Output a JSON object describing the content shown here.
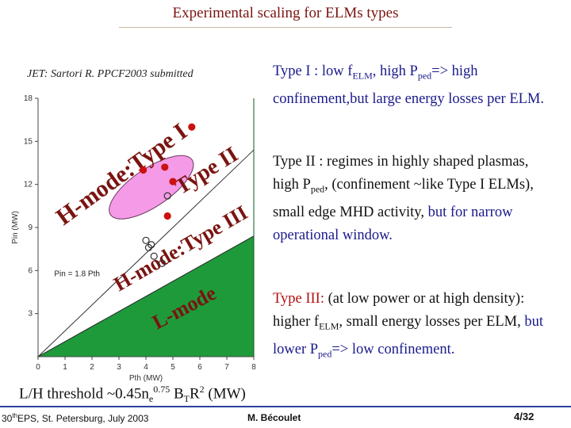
{
  "slide": {
    "title": "Experimental scaling for ELMs types",
    "reference": "JET: Sartori R. PPCF2003 submitted",
    "page": "4/32"
  },
  "type1": {
    "lead": "Type I : low f",
    "sub_elm": "ELM",
    "mid": ", high P",
    "sub_ped": "ped",
    "after": "=> high confinement,",
    "tail": "but large energy losses per ELM."
  },
  "type2": {
    "lead": "Type II : regimes in highly shaped plasmas,  high P",
    "sub_ped": "ped",
    "after": ", (confinement ~like Type I ELMs), small edge MHD activity,",
    "tail": "but for narrow operational window."
  },
  "type3": {
    "lead": "Type III:",
    "mid": "(at low power or at high density): higher f",
    "sub_elm": "ELM",
    "after": ", small energy losses per ELM,",
    "tail": "but lower P",
    "sub_ped": "ped",
    "end": "=> low confinement."
  },
  "threshold": {
    "lead": "L/H threshold ~0.45n",
    "sub_e": "e",
    "sup_exp": "0.75",
    "mid": "B",
    "sub_t": "T",
    "mid2": "R",
    "sup_two": "2",
    "end": "(MW)"
  },
  "footer": {
    "conference": "EPS, St. Petersburg, July 2003",
    "conf_number": "30",
    "conf_sup": "th",
    "author": "M. Bécoulet"
  },
  "chart_data": {
    "type": "scatter",
    "xlabel": "Pth (MW)",
    "ylabel": "Pin (MW)",
    "xlim": [
      0,
      8
    ],
    "ylim": [
      0,
      18
    ],
    "x_ticks": [
      "0",
      "1",
      "2",
      "3",
      "4",
      "5",
      "6",
      "7",
      "8"
    ],
    "y_ticks": [
      "3",
      "6",
      "9",
      "12",
      "15",
      "18"
    ],
    "threshold_line_label": "Pin = 1.8 Pth",
    "regions": [
      {
        "name": "H-mode:Type I"
      },
      {
        "name": "Type II"
      },
      {
        "name": "H-mode:Type III"
      },
      {
        "name": "L-mode"
      }
    ],
    "series": [
      {
        "name": "Type I",
        "marker": "filled-circle",
        "x": [
          5.7,
          4.7,
          3.9,
          5.0,
          4.8
        ],
        "y": [
          16.0,
          13.2,
          13.0,
          12.2,
          9.8
        ]
      },
      {
        "name": "Type III",
        "marker": "open-circle",
        "x": [
          4.8,
          4.0,
          4.1,
          4.2,
          4.3,
          4.6
        ],
        "y": [
          11.2,
          8.1,
          7.6,
          7.8,
          7.0,
          6.5
        ]
      }
    ],
    "colors": {
      "type1_region": "#ffffff",
      "type2_region": "#f59ae6",
      "lmode_region": "#1e9a3a",
      "point": "#cc1111"
    }
  }
}
